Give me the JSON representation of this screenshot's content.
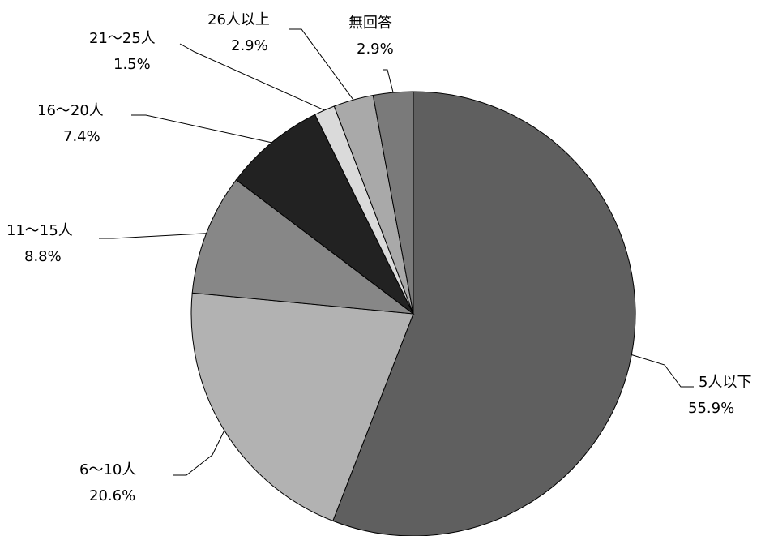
{
  "chart_data": {
    "type": "pie",
    "start_angle_deg": 0,
    "direction": "clockwise",
    "slices": [
      {
        "name": "5人以下",
        "value_label": "55.9%",
        "value": 55.9,
        "color": "#5f5f5f"
      },
      {
        "name": "6～10人",
        "value_label": "20.6%",
        "value": 20.6,
        "color": "#b2b2b2"
      },
      {
        "name": "11～15人",
        "value_label": "8.8%",
        "value": 8.8,
        "color": "#878787"
      },
      {
        "name": "16～20人",
        "value_label": "7.4%",
        "value": 7.4,
        "color": "#222222"
      },
      {
        "name": "21～25人",
        "value_label": "1.5%",
        "value": 1.5,
        "color": "#dadada"
      },
      {
        "name": "26人以上",
        "value_label": "2.9%",
        "value": 2.9,
        "color": "#a9a9a9"
      },
      {
        "name": "無回答",
        "value_label": "2.9%",
        "value": 2.9,
        "color": "#7a7a7a"
      }
    ]
  }
}
